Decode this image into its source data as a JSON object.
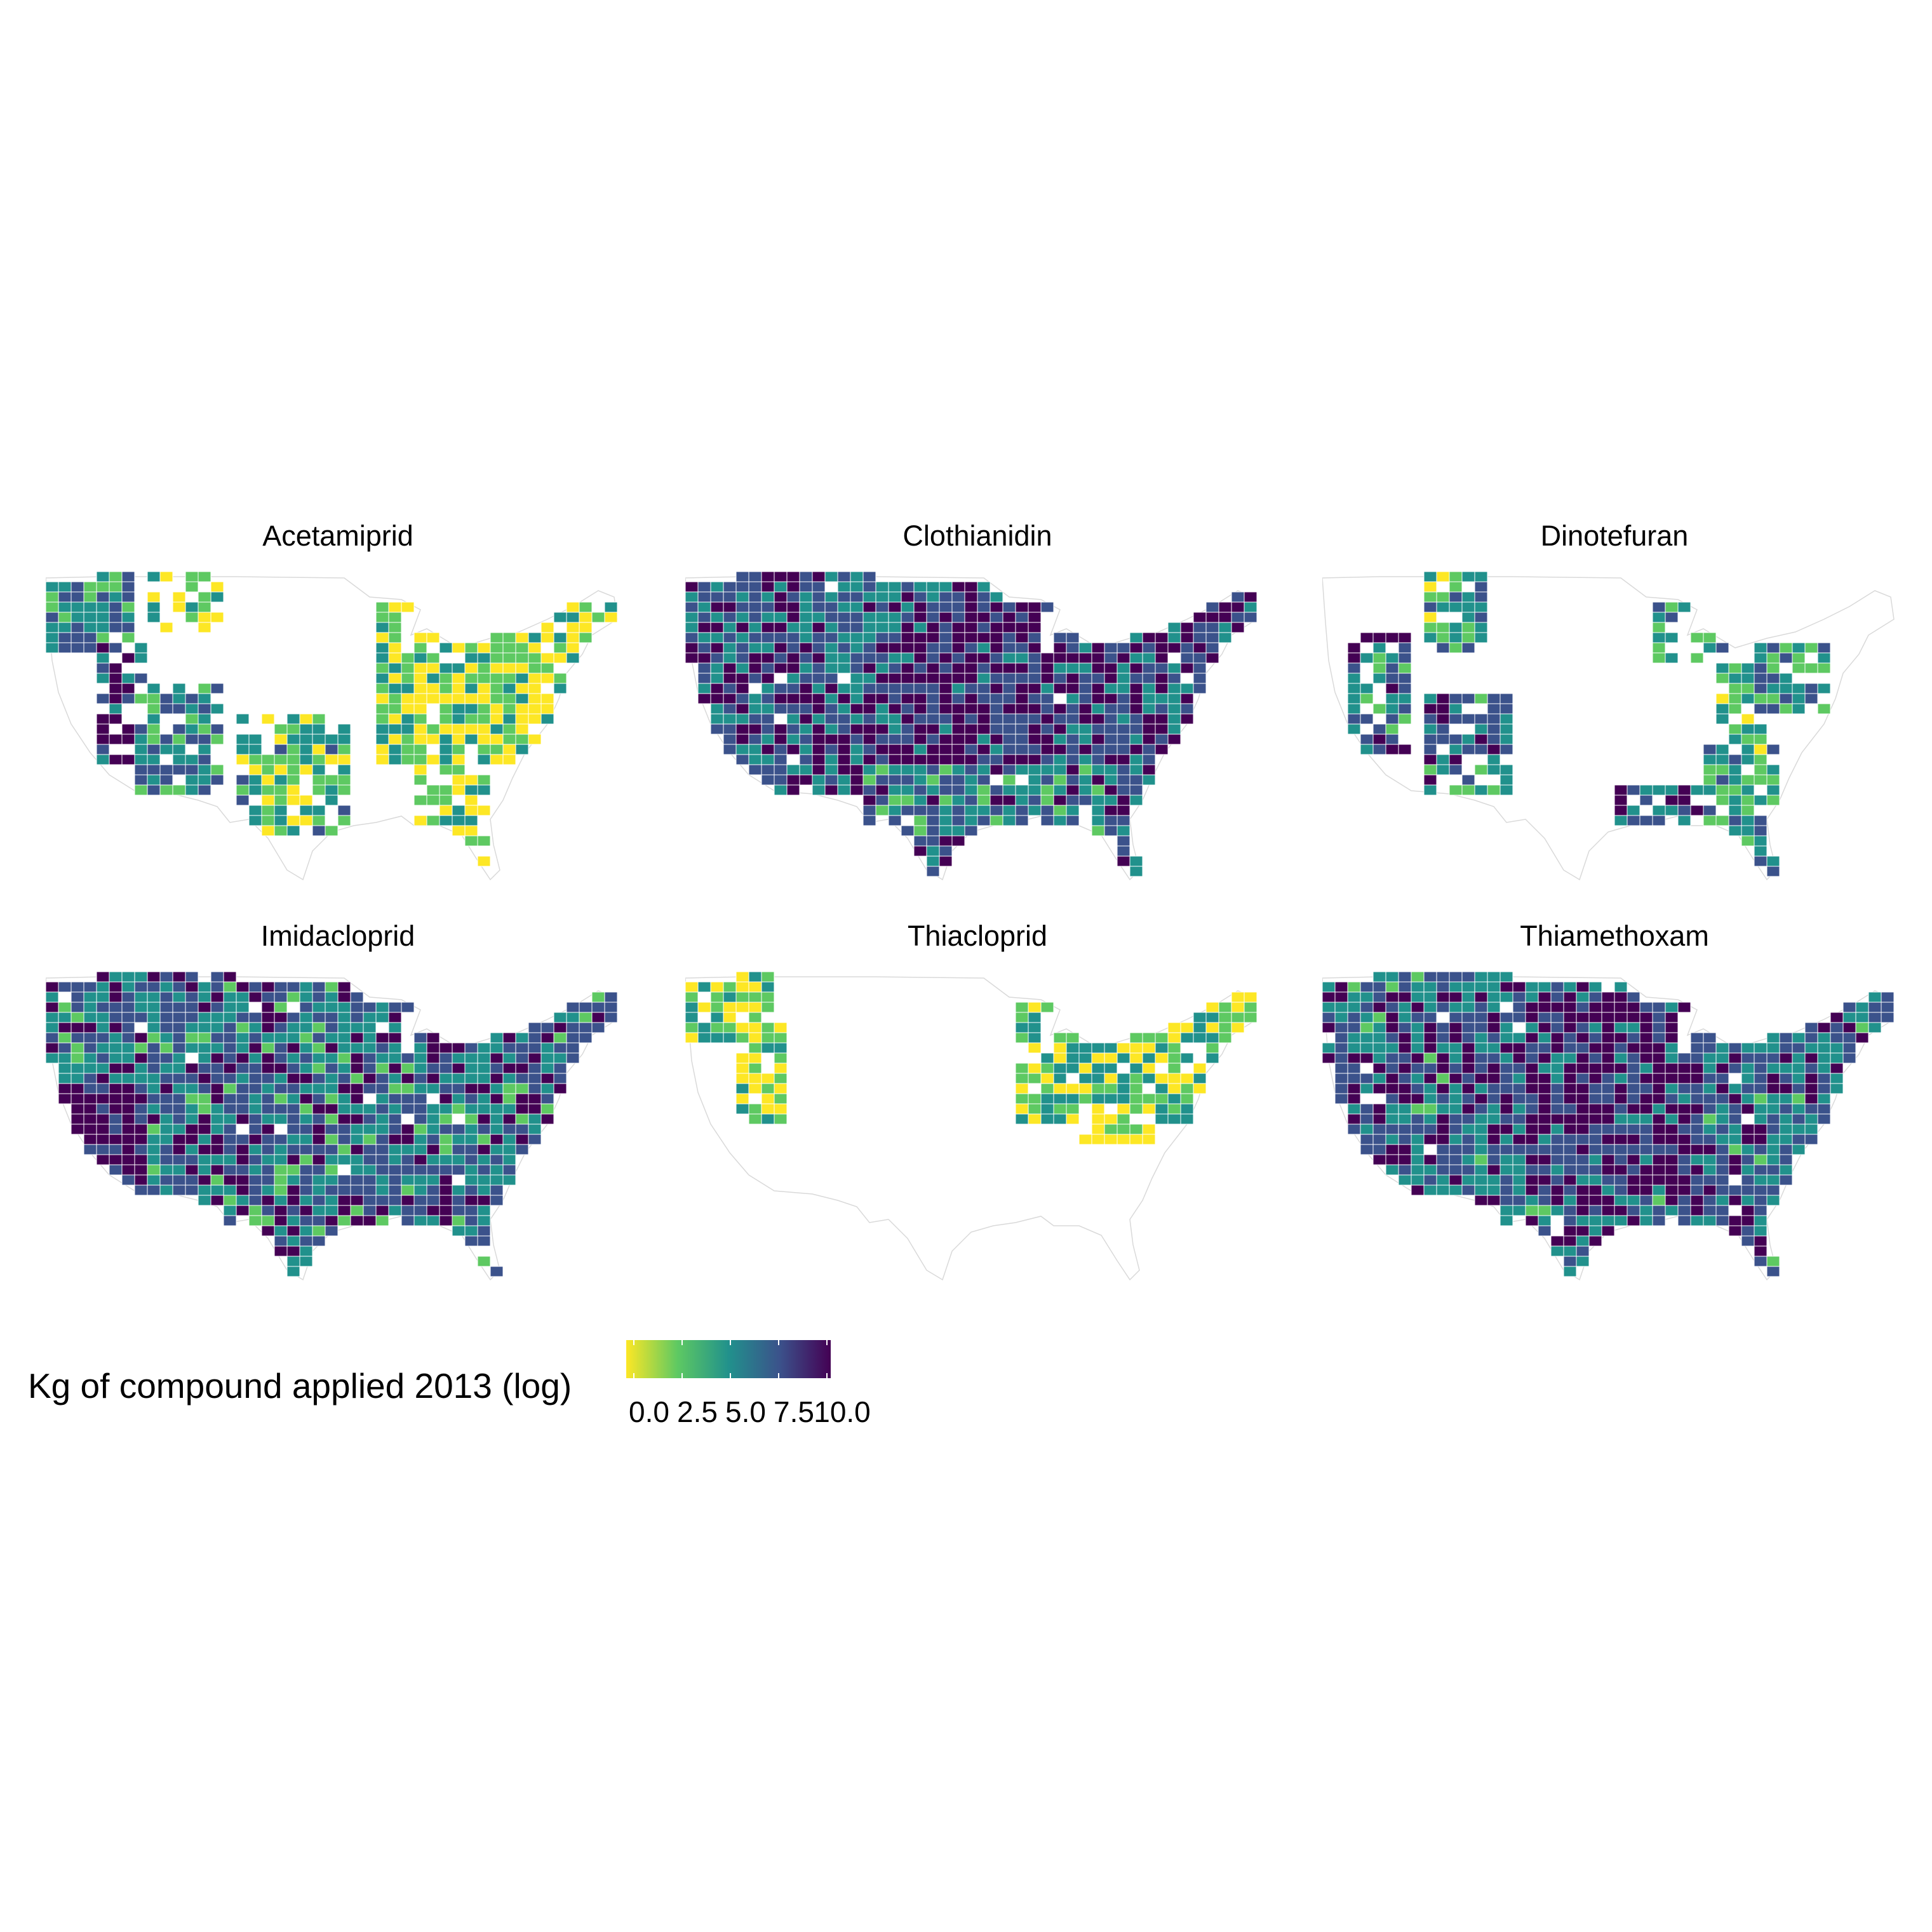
{
  "figure": {
    "panels": [
      {
        "title": "Acetamiprid"
      },
      {
        "title": "Clothianidin"
      },
      {
        "title": "Dinotefuran"
      },
      {
        "title": "Imidacloprid"
      },
      {
        "title": "Thiacloprid"
      },
      {
        "title": "Thiamethoxam"
      }
    ]
  },
  "legend": {
    "title": "Kg of compound applied 2013 (log)",
    "ticks": [
      "0.0",
      "2.5",
      "5.0",
      "7.5",
      "10.0"
    ],
    "range": [
      0,
      10.6
    ],
    "colors": [
      "#fde725",
      "#5ec962",
      "#21918c",
      "#3b528b",
      "#440154"
    ]
  },
  "map_data": {
    "type": "choropleth",
    "region": "contiguous United States, by county",
    "scale": "viridis, reversed (yellow = low, dark purple = high)",
    "panels": [
      {
        "name": "Acetamiprid",
        "coverage": "west coast, southwest, Texas, Midwest, East; sparse in Great Plains",
        "typical_level": "low-medium; high in California valleys"
      },
      {
        "name": "Clothianidin",
        "coverage": "nearly nationwide",
        "typical_level": "high in Corn Belt / Great Plains"
      },
      {
        "name": "Dinotefuran",
        "coverage": "California, Arizona, Pacific NW, Michigan, Florida, Gulf coast, mid-Atlantic",
        "typical_level": "medium; high in southern California"
      },
      {
        "name": "Imidacloprid",
        "coverage": "nationwide",
        "typical_level": "medium-high; highest in California"
      },
      {
        "name": "Thiacloprid",
        "coverage": "Pacific NW, California, Great Lakes, Ohio Valley, northeast",
        "typical_level": "low"
      },
      {
        "name": "Thiamethoxam",
        "coverage": "nearly nationwide",
        "typical_level": "high in Great Plains and Midwest"
      }
    ]
  }
}
